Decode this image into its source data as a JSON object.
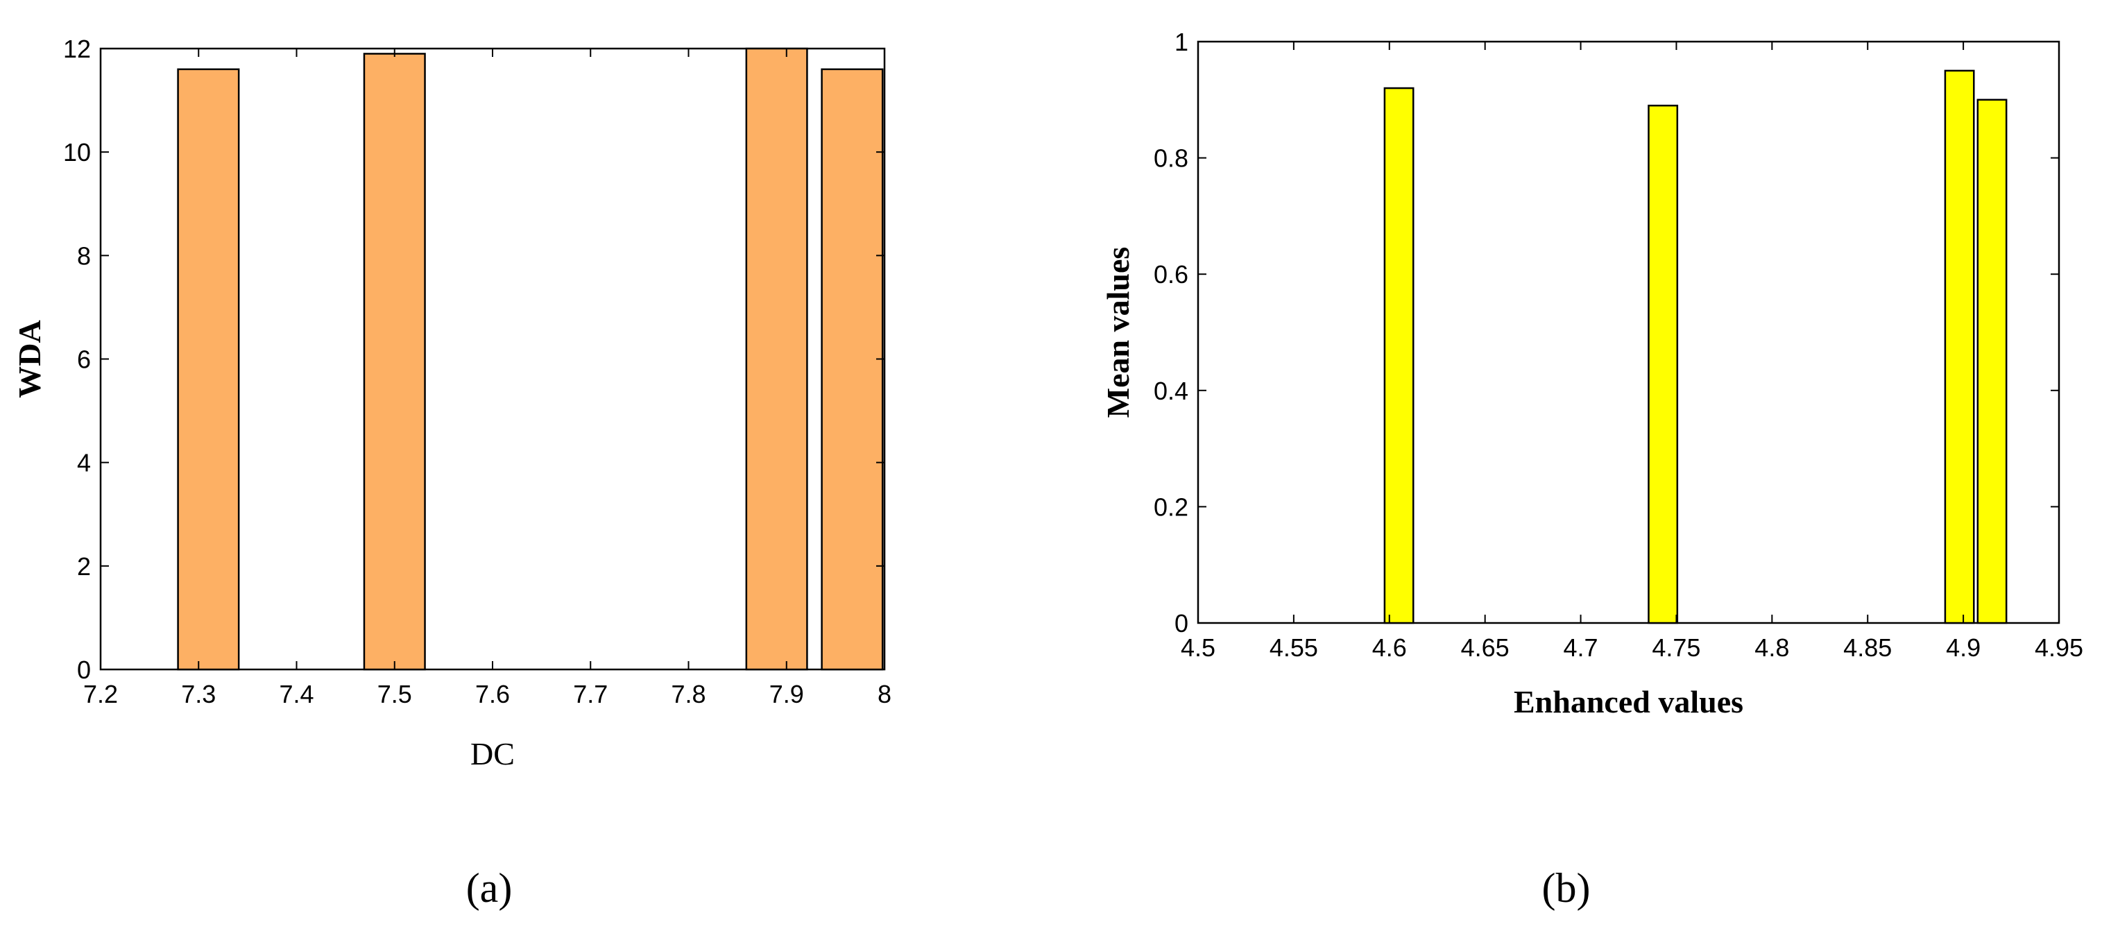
{
  "chart_data": [
    {
      "type": "bar",
      "panel_label": "(a)",
      "xlabel": "DC",
      "ylabel": "WDA",
      "xlim": [
        7.2,
        8
      ],
      "ylim": [
        0,
        12
      ],
      "xticks": [
        7.2,
        7.3,
        7.4,
        7.5,
        7.6,
        7.7,
        7.8,
        7.9,
        8
      ],
      "xtick_labels": [
        "7.2",
        "7.3",
        "7.4",
        "7.5",
        "7.6",
        "7.7",
        "7.8",
        "7.9",
        "8"
      ],
      "yticks": [
        0,
        2,
        4,
        6,
        8,
        10,
        12
      ],
      "ytick_labels": [
        "0",
        "2",
        "4",
        "6",
        "8",
        "10",
        "12"
      ],
      "bar_width": 0.062,
      "x": [
        7.31,
        7.5,
        7.89,
        7.967
      ],
      "values": [
        11.6,
        11.9,
        12,
        11.6
      ],
      "bar_color": "#FDB064",
      "grid": false
    },
    {
      "type": "bar",
      "panel_label": "(b)",
      "xlabel": "Enhanced values",
      "ylabel": "Mean values",
      "xlim": [
        4.5,
        4.95
      ],
      "ylim": [
        0,
        1
      ],
      "xticks": [
        4.5,
        4.55,
        4.6,
        4.65,
        4.7,
        4.75,
        4.8,
        4.85,
        4.9,
        4.95
      ],
      "xtick_labels": [
        "4.5",
        "4.55",
        "4.6",
        "4.65",
        "4.7",
        "4.75",
        "4.8",
        "4.85",
        "4.9",
        "4.95"
      ],
      "yticks": [
        0,
        0.2,
        0.4,
        0.6,
        0.8,
        1
      ],
      "ytick_labels": [
        "0",
        "0.2",
        "0.4",
        "0.6",
        "0.8",
        "1"
      ],
      "bar_width": 0.015,
      "x": [
        4.605,
        4.743,
        4.898,
        4.915
      ],
      "values": [
        0.92,
        0.89,
        0.95,
        0.9
      ],
      "bar_color": "#FFFF00",
      "grid": false
    }
  ]
}
